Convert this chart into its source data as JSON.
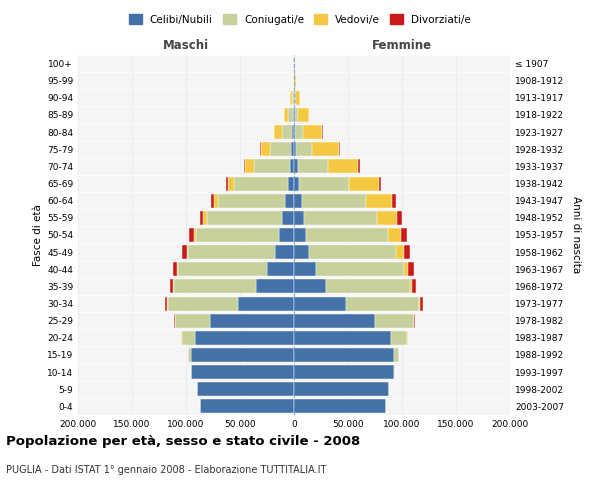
{
  "age_groups": [
    "0-4",
    "5-9",
    "10-14",
    "15-19",
    "20-24",
    "25-29",
    "30-34",
    "35-39",
    "40-44",
    "45-49",
    "50-54",
    "55-59",
    "60-64",
    "65-69",
    "70-74",
    "75-79",
    "80-84",
    "85-89",
    "90-94",
    "95-99",
    "100+"
  ],
  "birth_years": [
    "2003-2007",
    "1998-2002",
    "1993-1997",
    "1988-1992",
    "1983-1987",
    "1978-1982",
    "1973-1977",
    "1968-1972",
    "1963-1967",
    "1958-1962",
    "1953-1957",
    "1948-1952",
    "1943-1947",
    "1938-1942",
    "1933-1937",
    "1928-1932",
    "1923-1927",
    "1918-1922",
    "1913-1917",
    "1908-1912",
    "≤ 1907"
  ],
  "males": {
    "celibi": [
      87000,
      90000,
      95000,
      95000,
      92000,
      78000,
      52000,
      35000,
      25000,
      18000,
      14000,
      11000,
      8000,
      5500,
      4000,
      2500,
      1500,
      800,
      500,
      200,
      500
    ],
    "coniugati": [
      100,
      200,
      500,
      3000,
      12000,
      32000,
      65000,
      76000,
      82000,
      80000,
      77000,
      70000,
      62000,
      50000,
      33000,
      20000,
      10000,
      4500,
      1500,
      400,
      200
    ],
    "vedovi": [
      10,
      20,
      50,
      100,
      200,
      300,
      500,
      800,
      1000,
      1500,
      2000,
      3000,
      4000,
      6000,
      8000,
      8000,
      7000,
      4000,
      1500,
      400,
      200
    ],
    "divorziati": [
      10,
      20,
      50,
      100,
      200,
      500,
      1500,
      3000,
      4000,
      4500,
      4000,
      3500,
      2500,
      1500,
      1000,
      700,
      400,
      200,
      100,
      50,
      30
    ]
  },
  "females": {
    "nubili": [
      85000,
      88000,
      93000,
      93000,
      90000,
      75000,
      48000,
      30000,
      20000,
      14000,
      11000,
      9000,
      7000,
      5000,
      3500,
      2000,
      1000,
      500,
      300,
      100,
      300
    ],
    "coniugate": [
      100,
      200,
      600,
      4000,
      15000,
      36000,
      68000,
      77000,
      82000,
      80000,
      76000,
      68000,
      60000,
      46000,
      28000,
      15000,
      7000,
      3000,
      1000,
      300,
      100
    ],
    "vedove": [
      10,
      20,
      50,
      150,
      300,
      500,
      1000,
      2000,
      4000,
      8000,
      12000,
      18000,
      24000,
      28000,
      28000,
      25000,
      18000,
      10000,
      4000,
      1000,
      500
    ],
    "divorziate": [
      10,
      20,
      50,
      100,
      300,
      800,
      2000,
      3500,
      5000,
      5500,
      5500,
      5000,
      3500,
      2000,
      1200,
      800,
      500,
      300,
      100,
      50,
      30
    ]
  },
  "colors": {
    "celibi": "#4472A8",
    "coniugati": "#C5D09A",
    "vedovi": "#F5C842",
    "divorziati": "#CC1A1A"
  },
  "xlim": 200000,
  "xticks": [
    -200000,
    -150000,
    -100000,
    -50000,
    0,
    50000,
    100000,
    150000,
    200000
  ],
  "xtick_labels": [
    "200.000",
    "150.000",
    "100.000",
    "50.000",
    "0",
    "50.000",
    "100.000",
    "150.000",
    "200.000"
  ],
  "title": "Popolazione per età, sesso e stato civile - 2008",
  "subtitle": "PUGLIA - Dati ISTAT 1° gennaio 2008 - Elaborazione TUTTITALIA.IT",
  "ylabel_left": "Fasce di età",
  "ylabel_right": "Anni di nascita",
  "label_maschi": "Maschi",
  "label_femmine": "Femmine",
  "legend_labels": [
    "Celibi/Nubili",
    "Coniugati/e",
    "Vedovi/e",
    "Divorziati/e"
  ],
  "bg_color": "#F5F5F5"
}
